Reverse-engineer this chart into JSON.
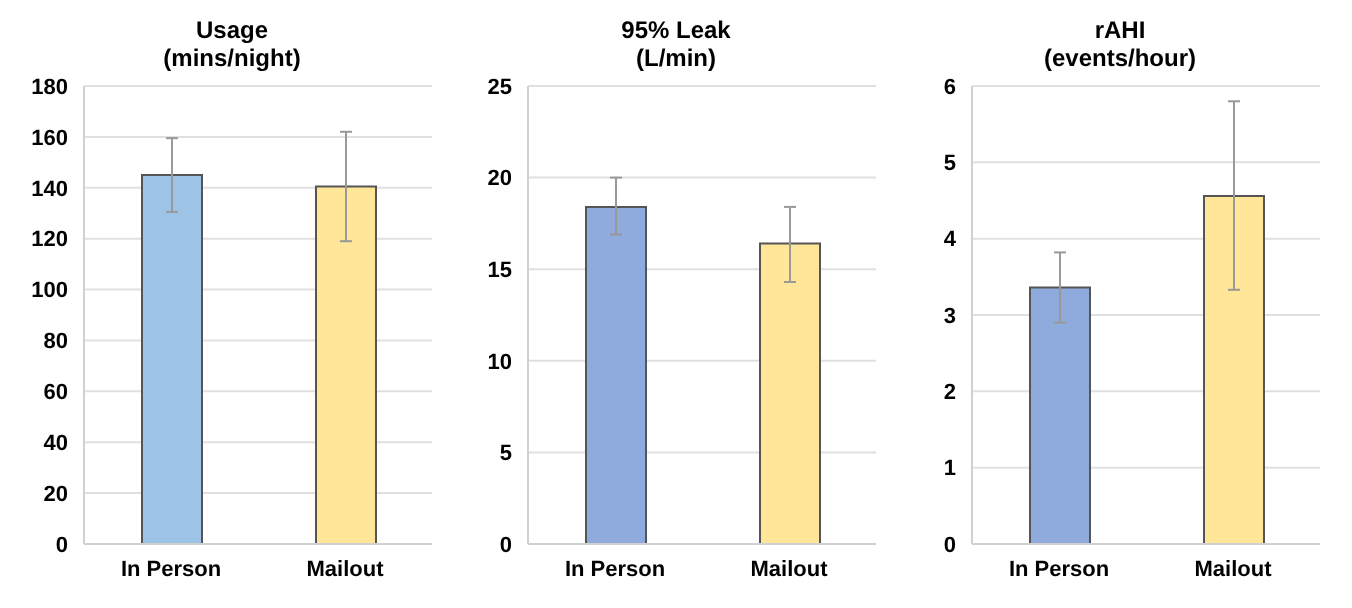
{
  "chart_data": [
    {
      "type": "bar",
      "title": "Usage",
      "subtitle": "(mins/night)",
      "categories": [
        "In Person",
        "Mailout"
      ],
      "values": [
        145,
        140.5
      ],
      "colors": [
        "#9dc3e6",
        "#ffe699"
      ],
      "errors": [
        [
          130.5,
          159.5
        ],
        [
          119,
          162
        ]
      ],
      "ylim": [
        0,
        180
      ],
      "yticks": [
        0,
        20,
        40,
        60,
        80,
        100,
        120,
        140,
        160,
        180
      ],
      "grid": "y"
    },
    {
      "type": "bar",
      "title": "95% Leak",
      "subtitle": "(L/min)",
      "categories": [
        "In Person",
        "Mailout"
      ],
      "values": [
        18.4,
        16.4
      ],
      "colors": [
        "#8faadc",
        "#ffe699"
      ],
      "errors": [
        [
          16.9,
          20
        ],
        [
          14.3,
          18.4
        ]
      ],
      "ylim": [
        0,
        25
      ],
      "yticks": [
        0,
        5,
        10,
        15,
        20,
        25
      ],
      "grid": "y"
    },
    {
      "type": "bar",
      "title": "rAHI",
      "subtitle": "(events/hour)",
      "categories": [
        "In Person",
        "Mailout"
      ],
      "values": [
        3.36,
        4.56
      ],
      "colors": [
        "#8faadc",
        "#ffe699"
      ],
      "errors": [
        [
          2.9,
          3.82
        ],
        [
          3.33,
          5.8
        ]
      ],
      "ylim": [
        0,
        6
      ],
      "yticks": [
        0,
        1,
        2,
        3,
        4,
        5,
        6
      ],
      "grid": "y"
    }
  ]
}
